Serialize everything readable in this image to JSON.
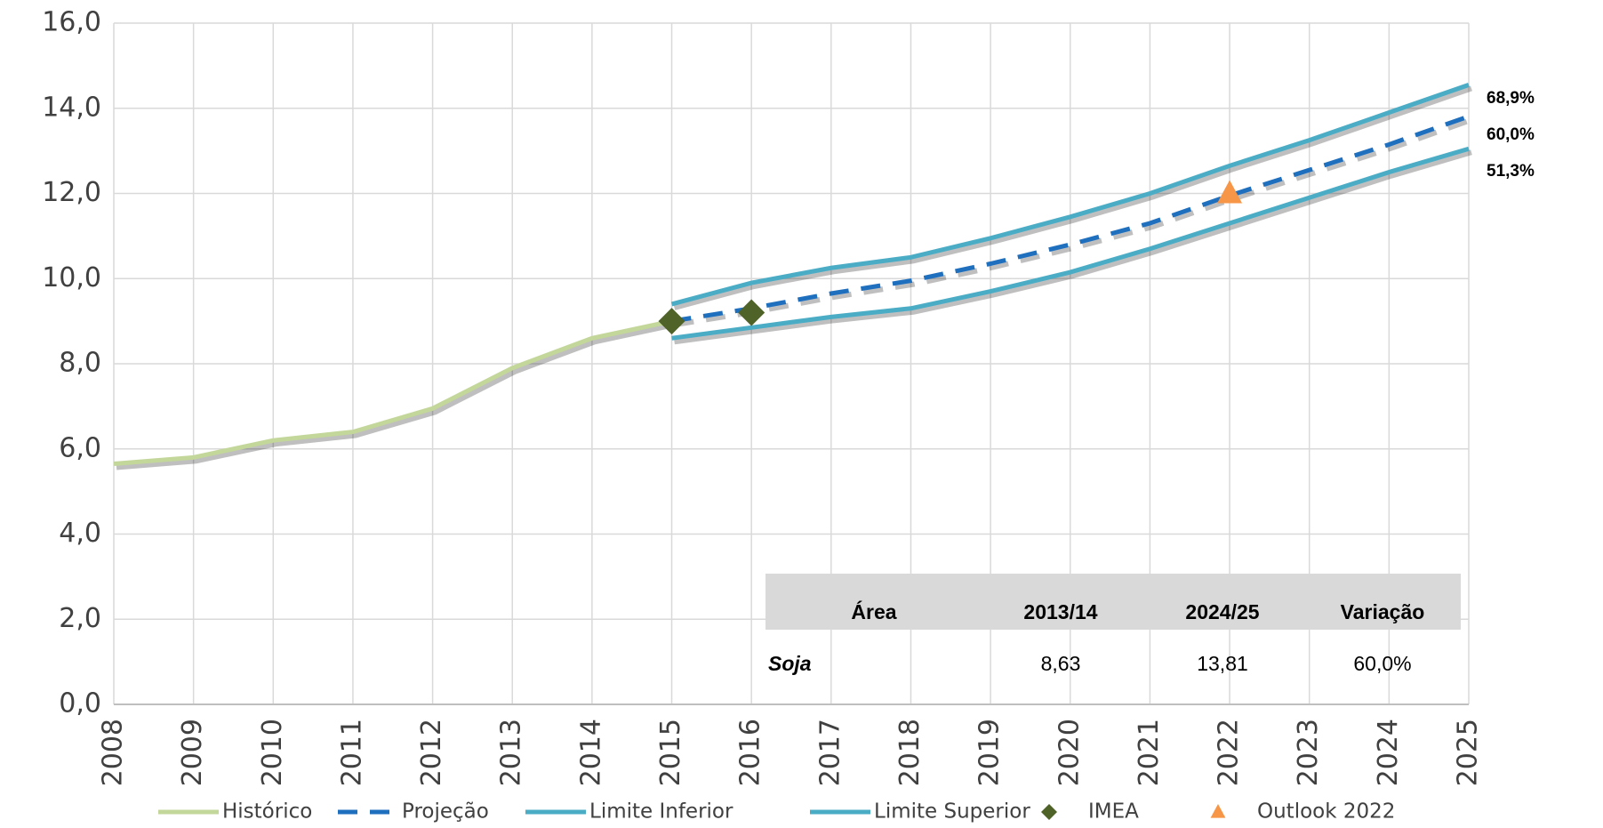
{
  "chart_data": {
    "type": "line",
    "x": [
      2008,
      2009,
      2010,
      2011,
      2012,
      2013,
      2014,
      2015,
      2016,
      2017,
      2018,
      2019,
      2020,
      2021,
      2022,
      2023,
      2024,
      2025
    ],
    "xlim": [
      2008,
      2025
    ],
    "xticks": [
      2008,
      2009,
      2010,
      2011,
      2012,
      2013,
      2014,
      2015,
      2016,
      2017,
      2018,
      2019,
      2020,
      2021,
      2022,
      2023,
      2024,
      2025
    ],
    "ylim": [
      0,
      16
    ],
    "yticks": [
      {
        "value": 0,
        "label": "0,0"
      },
      {
        "value": 2,
        "label": "2,0"
      },
      {
        "value": 4,
        "label": "4,0"
      },
      {
        "value": 6,
        "label": "6,0"
      },
      {
        "value": 8,
        "label": "8,0"
      },
      {
        "value": 10,
        "label": "10,0"
      },
      {
        "value": 12,
        "label": "12,0"
      },
      {
        "value": 14,
        "label": "14,0"
      },
      {
        "value": 16,
        "label": "16,0"
      }
    ],
    "grid": true,
    "series": [
      {
        "name": "Histórico",
        "color": "#c4d79b",
        "style": "solid",
        "values": [
          5.65,
          5.8,
          6.2,
          6.4,
          6.95,
          7.9,
          8.6,
          9.0,
          null,
          null,
          null,
          null,
          null,
          null,
          null,
          null,
          null,
          null
        ]
      },
      {
        "name": "Projeção",
        "color": "#1f6fbf",
        "style": "dashed",
        "values": [
          null,
          null,
          null,
          null,
          null,
          null,
          null,
          9.0,
          9.3,
          9.65,
          9.95,
          10.35,
          10.8,
          11.3,
          11.95,
          12.55,
          13.15,
          13.81
        ]
      },
      {
        "name": "Limite Inferior",
        "color": "#4bacc6",
        "style": "solid",
        "values": [
          null,
          null,
          null,
          null,
          null,
          null,
          null,
          8.6,
          8.85,
          9.1,
          9.3,
          9.7,
          10.15,
          10.7,
          11.3,
          11.9,
          12.5,
          13.05
        ]
      },
      {
        "name": "Limite Superior",
        "color": "#4bacc6",
        "style": "solid",
        "values": [
          null,
          null,
          null,
          null,
          null,
          null,
          null,
          9.4,
          9.9,
          10.25,
          10.5,
          10.95,
          11.45,
          12.0,
          12.65,
          13.25,
          13.9,
          14.55
        ]
      },
      {
        "name": "IMEA",
        "color": "#4f6228",
        "marker": "diamond",
        "values": [
          null,
          null,
          null,
          null,
          null,
          null,
          null,
          9.0,
          9.2,
          null,
          null,
          null,
          null,
          null,
          null,
          null,
          null,
          null
        ]
      },
      {
        "name": "Outlook 2022",
        "color": "#f79646",
        "marker": "triangle",
        "values": [
          null,
          null,
          null,
          null,
          null,
          null,
          null,
          null,
          null,
          null,
          null,
          null,
          null,
          null,
          12.0,
          null,
          null,
          null
        ]
      }
    ],
    "annotations": [
      "68,9%",
      "60,0%",
      "51,3%"
    ],
    "table": {
      "header": [
        "Área",
        "2013/14",
        "2024/25",
        "Variação"
      ],
      "rows": [
        [
          "Soja",
          "8,63",
          "13,81",
          "60,0%"
        ]
      ]
    }
  }
}
